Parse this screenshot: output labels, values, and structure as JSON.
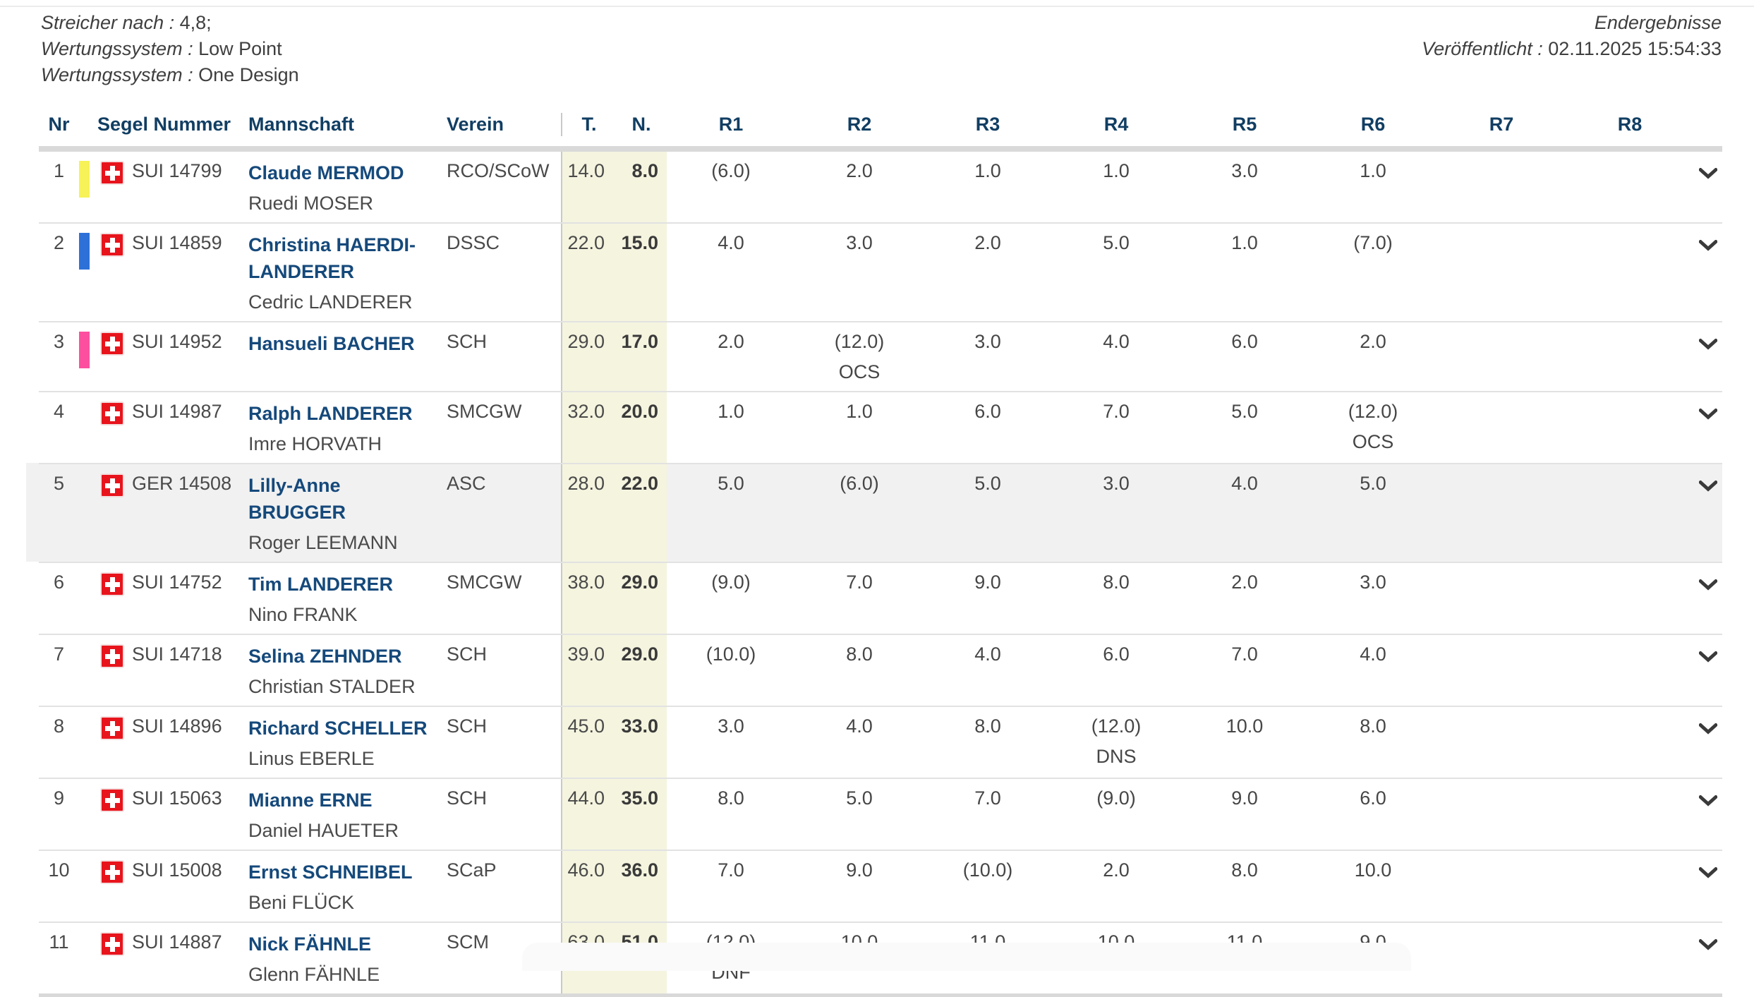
{
  "meta": {
    "left": [
      {
        "label": "Streicher nach :",
        "value": "4,8;"
      },
      {
        "label": "Wertungssystem :",
        "value": "Low Point"
      },
      {
        "label": "Wertungssystem :",
        "value": "One Design"
      }
    ],
    "right": {
      "title": "Endergebnisse",
      "published_label": "Veröffentlicht :",
      "published_value": "02.11.2025 15:54:33"
    }
  },
  "table": {
    "headers": {
      "nr": "Nr",
      "sail": "Segel Nummer",
      "team": "Mannschaft",
      "club": "Verein",
      "total": "T.",
      "net": "N.",
      "races": [
        "R1",
        "R2",
        "R3",
        "R4",
        "R5",
        "R6",
        "R7",
        "R8"
      ]
    },
    "colors": {
      "header_text": "#113e63",
      "name_text": "#15497b",
      "cream_column": "#f5f4df",
      "highlight_row": "#f1f1f1",
      "flag_red": "#e8141c"
    },
    "rows": [
      {
        "nr": "1",
        "bar_color": "#f7f257",
        "flag": "swiss-flag",
        "sail": "SUI 14799",
        "helm": "Claude MERMOD",
        "crew": "Ruedi MOSER",
        "club": "RCO/SCoW",
        "total": "14.0",
        "net": "8.0",
        "highlight": false,
        "races": [
          {
            "v": "(6.0)"
          },
          {
            "v": "2.0"
          },
          {
            "v": "1.0"
          },
          {
            "v": "1.0"
          },
          {
            "v": "3.0"
          },
          {
            "v": "1.0"
          },
          {},
          {}
        ]
      },
      {
        "nr": "2",
        "bar_color": "#2d71d8",
        "flag": "swiss-flag",
        "sail": "SUI 14859",
        "helm": "Christina HAERDI-LANDERER",
        "crew": "Cedric LANDERER",
        "club": "DSSC",
        "total": "22.0",
        "net": "15.0",
        "highlight": false,
        "races": [
          {
            "v": "4.0"
          },
          {
            "v": "3.0"
          },
          {
            "v": "2.0"
          },
          {
            "v": "5.0"
          },
          {
            "v": "1.0"
          },
          {
            "v": "(7.0)"
          },
          {},
          {}
        ]
      },
      {
        "nr": "3",
        "bar_color": "#fd4f9f",
        "flag": "swiss-flag",
        "sail": "SUI 14952",
        "helm": "Hansueli BACHER",
        "crew": "",
        "club": "SCH",
        "total": "29.0",
        "net": "17.0",
        "highlight": false,
        "races": [
          {
            "v": "2.0"
          },
          {
            "v": "(12.0)",
            "code": "OCS"
          },
          {
            "v": "3.0"
          },
          {
            "v": "4.0"
          },
          {
            "v": "6.0"
          },
          {
            "v": "2.0"
          },
          {},
          {}
        ]
      },
      {
        "nr": "4",
        "bar_color": "",
        "flag": "swiss-flag",
        "sail": "SUI 14987",
        "helm": "Ralph LANDERER",
        "crew": "Imre HORVATH",
        "club": "SMCGW",
        "total": "32.0",
        "net": "20.0",
        "highlight": false,
        "races": [
          {
            "v": "1.0"
          },
          {
            "v": "1.0"
          },
          {
            "v": "6.0"
          },
          {
            "v": "7.0"
          },
          {
            "v": "5.0"
          },
          {
            "v": "(12.0)",
            "code": "OCS"
          },
          {},
          {}
        ]
      },
      {
        "nr": "5",
        "bar_color": "",
        "flag": "swiss-flag",
        "sail": "GER 14508",
        "helm": "Lilly-Anne BRUGGER",
        "crew": "Roger LEEMANN",
        "club": "ASC",
        "total": "28.0",
        "net": "22.0",
        "highlight": true,
        "races": [
          {
            "v": "5.0"
          },
          {
            "v": "(6.0)"
          },
          {
            "v": "5.0"
          },
          {
            "v": "3.0"
          },
          {
            "v": "4.0"
          },
          {
            "v": "5.0"
          },
          {},
          {}
        ]
      },
      {
        "nr": "6",
        "bar_color": "",
        "flag": "swiss-flag",
        "sail": "SUI 14752",
        "helm": "Tim LANDERER",
        "crew": "Nino FRANK",
        "club": "SMCGW",
        "total": "38.0",
        "net": "29.0",
        "highlight": false,
        "races": [
          {
            "v": "(9.0)"
          },
          {
            "v": "7.0"
          },
          {
            "v": "9.0"
          },
          {
            "v": "8.0"
          },
          {
            "v": "2.0"
          },
          {
            "v": "3.0"
          },
          {},
          {}
        ]
      },
      {
        "nr": "7",
        "bar_color": "",
        "flag": "swiss-flag",
        "sail": "SUI 14718",
        "helm": "Selina ZEHNDER",
        "crew": "Christian STALDER",
        "club": "SCH",
        "total": "39.0",
        "net": "29.0",
        "highlight": false,
        "races": [
          {
            "v": "(10.0)"
          },
          {
            "v": "8.0"
          },
          {
            "v": "4.0"
          },
          {
            "v": "6.0"
          },
          {
            "v": "7.0"
          },
          {
            "v": "4.0"
          },
          {},
          {}
        ]
      },
      {
        "nr": "8",
        "bar_color": "",
        "flag": "swiss-flag",
        "sail": "SUI 14896",
        "helm": "Richard SCHELLER",
        "crew": "Linus EBERLE",
        "club": "SCH",
        "total": "45.0",
        "net": "33.0",
        "highlight": false,
        "races": [
          {
            "v": "3.0"
          },
          {
            "v": "4.0"
          },
          {
            "v": "8.0"
          },
          {
            "v": "(12.0)",
            "code": "DNS"
          },
          {
            "v": "10.0"
          },
          {
            "v": "8.0"
          },
          {},
          {}
        ]
      },
      {
        "nr": "9",
        "bar_color": "",
        "flag": "swiss-flag",
        "sail": "SUI 15063",
        "helm": "Mianne ERNE",
        "crew": "Daniel HAUETER",
        "club": "SCH",
        "total": "44.0",
        "net": "35.0",
        "highlight": false,
        "races": [
          {
            "v": "8.0"
          },
          {
            "v": "5.0"
          },
          {
            "v": "7.0"
          },
          {
            "v": "(9.0)"
          },
          {
            "v": "9.0"
          },
          {
            "v": "6.0"
          },
          {},
          {}
        ]
      },
      {
        "nr": "10",
        "bar_color": "",
        "flag": "swiss-flag",
        "sail": "SUI 15008",
        "helm": "Ernst SCHNEIBEL",
        "crew": "Beni FLÜCK",
        "club": "SCaP",
        "total": "46.0",
        "net": "36.0",
        "highlight": false,
        "races": [
          {
            "v": "7.0"
          },
          {
            "v": "9.0"
          },
          {
            "v": "(10.0)"
          },
          {
            "v": "2.0"
          },
          {
            "v": "8.0"
          },
          {
            "v": "10.0"
          },
          {},
          {}
        ]
      },
      {
        "nr": "11",
        "bar_color": "",
        "flag": "swiss-flag",
        "sail": "SUI 14887",
        "helm": "Nick FÄHNLE",
        "crew": "Glenn FÄHNLE",
        "club": "SCM",
        "total": "63.0",
        "net": "51.0",
        "highlight": false,
        "races": [
          {
            "v": "(12.0)",
            "code": "DNF"
          },
          {
            "v": "10.0"
          },
          {
            "v": "11.0"
          },
          {
            "v": "10.0"
          },
          {
            "v": "11.0"
          },
          {
            "v": "9.0"
          },
          {},
          {}
        ]
      }
    ]
  }
}
